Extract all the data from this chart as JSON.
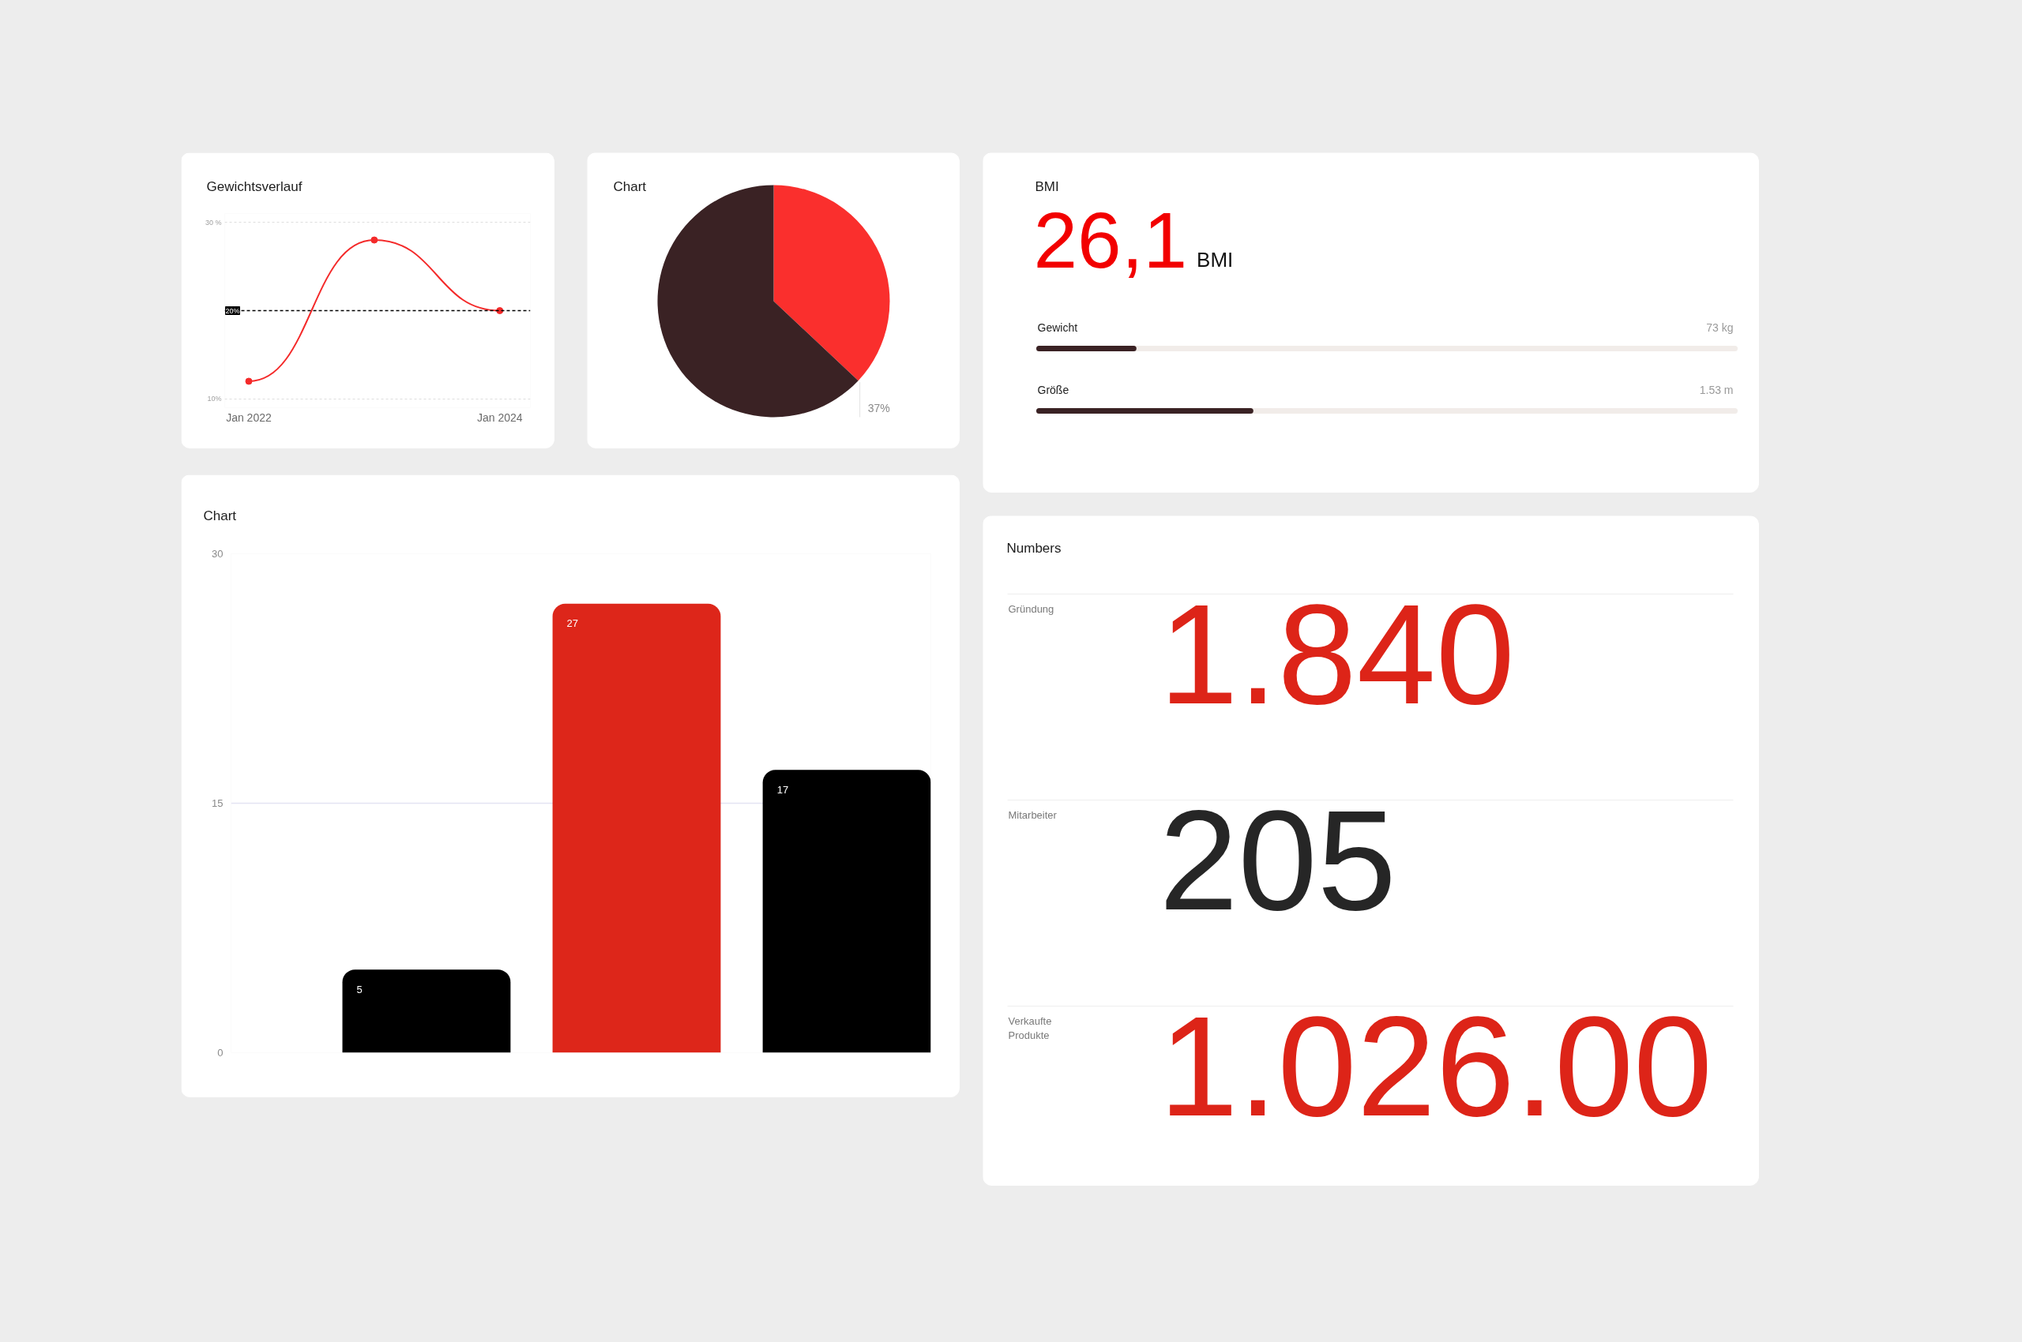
{
  "chart_data": [
    {
      "type": "line",
      "title": "Gewichtsverlauf",
      "x": [
        "2022-01",
        "2023-01",
        "2024-01"
      ],
      "values": [
        12,
        28,
        20
      ],
      "color": "#f42a2a",
      "marker": "circle",
      "line_style": "solid",
      "xlim": [
        "2021-10-23",
        "2024-03-30"
      ],
      "xticks": [
        {
          "value": "2022-01",
          "label": "Jan 2022"
        },
        {
          "value": "2024-01",
          "label": "Jan 2024"
        }
      ],
      "ylim": [
        9,
        31
      ],
      "yticks": [
        {
          "value": 10,
          "label": "10%"
        },
        {
          "value": 30,
          "label": "30 %"
        }
      ],
      "grid": "y",
      "ref_lines": [
        {
          "axis": "y",
          "value": 20,
          "label": "20%",
          "color": "#000000",
          "line_style": "dashed"
        }
      ]
    },
    {
      "type": "pie",
      "title": "Chart",
      "categories": [
        null,
        null
      ],
      "values": [
        37,
        63
      ],
      "colors": [
        "#fa2f2d",
        "#3a2224"
      ],
      "value_labels": [
        "37%",
        null
      ]
    },
    {
      "type": "other",
      "title": "BMI",
      "annotations": [
        "26,1",
        "BMI"
      ],
      "color": "#f20000",
      "categories": [
        "Gewicht",
        "Größe"
      ],
      "value_labels": [
        "73 kg",
        "1.53 m"
      ]
    },
    {
      "type": "bar",
      "title": "Chart",
      "categories": [
        null,
        null,
        null
      ],
      "values": [
        5,
        27,
        17
      ],
      "colors": [
        "#000000",
        "#dd261a",
        "#000000"
      ],
      "ylim": [
        0,
        30
      ],
      "yticks": [
        0,
        15,
        30
      ],
      "grid": "y",
      "data_labels": true
    },
    {
      "type": "other",
      "title": "Numbers",
      "categories": [
        "Gründung",
        "Mitarbeiter",
        "Verkaufte Produkte"
      ],
      "value_labels": [
        "1.840",
        "205",
        "1.026.00"
      ]
    }
  ]
}
